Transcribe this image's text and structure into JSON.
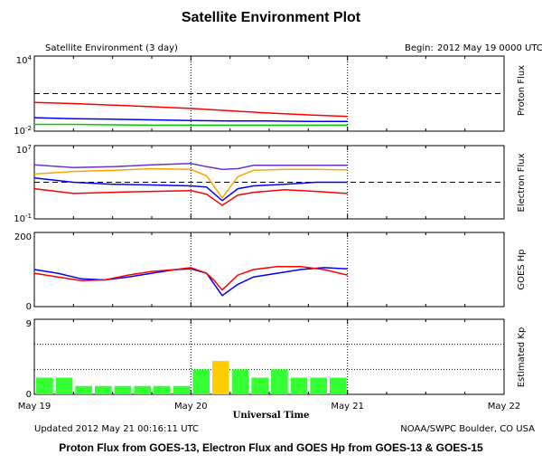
{
  "header": {
    "title": "Satellite Environment Plot",
    "subtitle_left": "Satellite Environment (3 day)",
    "begin_label": "Begin:",
    "begin_value": "2012 May 19 0000 UTC"
  },
  "footer": {
    "updated": "Updated 2012 May 21 00:16:11 UTC",
    "credit": "NOAA/SWPC Boulder, CO USA",
    "caption": "Proton Flux from GOES-13, Electron Flux and GOES Hp from GOES-13 & GOES-15"
  },
  "colors": {
    "red": "#ff0000",
    "blue": "#0000ff",
    "green": "#00cc00",
    "orange": "#ffa500",
    "purple": "#6633cc",
    "kp_green": "#33ff33",
    "kp_yellow": "#ffcc00"
  },
  "chart_data": [
    {
      "type": "line",
      "ylabel": "Proton Flux",
      "yscale": "log",
      "ylim": [
        0.01,
        10000
      ],
      "ytick_labels": [
        "10^4",
        "10^-2"
      ],
      "threshold": 10,
      "xlabel": "Universal Time",
      "x_tick_labels": [
        "May 19",
        "May 20",
        "May 21",
        "May 22"
      ],
      "xlim_days": [
        0,
        3
      ],
      "series": [
        {
          "color": "red",
          "x": [
            0,
            0.25,
            0.5,
            0.75,
            1.0,
            1.25,
            1.5,
            1.75,
            2.0
          ],
          "values": [
            2.0,
            1.6,
            1.2,
            0.9,
            0.65,
            0.42,
            0.28,
            0.2,
            0.15
          ]
        },
        {
          "color": "blue",
          "x": [
            0,
            0.25,
            0.5,
            0.75,
            1.0,
            1.25,
            1.5,
            1.75,
            2.0
          ],
          "values": [
            0.12,
            0.1,
            0.09,
            0.08,
            0.07,
            0.065,
            0.065,
            0.06,
            0.06
          ]
        },
        {
          "color": "green",
          "x": [
            0,
            0.25,
            0.5,
            0.75,
            1.0,
            1.25,
            1.5,
            1.75,
            2.0
          ],
          "values": [
            0.035,
            0.035,
            0.032,
            0.03,
            0.03,
            0.03,
            0.03,
            0.03,
            0.03
          ]
        }
      ]
    },
    {
      "type": "line",
      "ylabel": "Electron Flux",
      "yscale": "log",
      "ylim": [
        0.1,
        10000000
      ],
      "ytick_labels": [
        "10^7",
        "10^-1"
      ],
      "threshold": 1000,
      "series": [
        {
          "color": "purple",
          "x": [
            0,
            0.25,
            0.5,
            0.75,
            1.0,
            1.1,
            1.2,
            1.3,
            1.4,
            1.6,
            1.8,
            2.0
          ],
          "values": [
            80000,
            40000,
            50000,
            80000,
            110000,
            50000,
            25000,
            30000,
            70000,
            70000,
            70000,
            70000
          ]
        },
        {
          "color": "orange",
          "x": [
            0,
            0.25,
            0.5,
            0.75,
            1.0,
            1.1,
            1.2,
            1.3,
            1.4,
            1.6,
            1.8,
            2.0
          ],
          "values": [
            8000,
            15000,
            20000,
            30000,
            25000,
            5000,
            20,
            4000,
            20000,
            25000,
            25000,
            22000
          ]
        },
        {
          "color": "blue",
          "x": [
            0,
            0.25,
            0.5,
            0.75,
            1.0,
            1.1,
            1.2,
            1.3,
            1.4,
            1.6,
            1.8,
            2.0
          ],
          "values": [
            3000,
            1000,
            600,
            500,
            400,
            300,
            10,
            200,
            400,
            600,
            1000,
            1000
          ]
        },
        {
          "color": "red",
          "x": [
            0,
            0.25,
            0.5,
            0.75,
            1.0,
            1.1,
            1.2,
            1.3,
            1.4,
            1.6,
            1.8,
            2.0
          ],
          "values": [
            200,
            60,
            80,
            100,
            120,
            50,
            3,
            40,
            80,
            150,
            100,
            60
          ]
        }
      ]
    },
    {
      "type": "line",
      "ylabel": "GOES Hp",
      "ylim": [
        0,
        200
      ],
      "ytick_labels": [
        "200",
        "0"
      ],
      "series": [
        {
          "color": "blue",
          "x": [
            0,
            0.15,
            0.3,
            0.45,
            0.6,
            0.75,
            0.9,
            1.0,
            1.1,
            1.15,
            1.2,
            1.3,
            1.4,
            1.55,
            1.7,
            1.85,
            2.0
          ],
          "values": [
            100,
            90,
            75,
            72,
            80,
            90,
            100,
            102,
            90,
            60,
            30,
            60,
            80,
            90,
            100,
            105,
            102
          ]
        },
        {
          "color": "red",
          "x": [
            0,
            0.15,
            0.3,
            0.45,
            0.6,
            0.75,
            0.9,
            1.0,
            1.1,
            1.15,
            1.2,
            1.3,
            1.4,
            1.55,
            1.7,
            1.85,
            2.0
          ],
          "values": [
            90,
            80,
            70,
            72,
            85,
            95,
            100,
            105,
            90,
            70,
            45,
            85,
            100,
            108,
            108,
            100,
            85
          ]
        }
      ]
    },
    {
      "type": "bar",
      "ylabel": "Estimated Kp",
      "ylim": [
        0,
        9
      ],
      "ytick_labels": [
        "9",
        "0"
      ],
      "bar_hours": 3,
      "values": [
        2,
        2,
        1,
        1,
        1,
        1,
        1,
        1,
        3,
        4,
        3,
        2,
        3,
        2,
        2,
        2
      ],
      "bar_colors": [
        "green",
        "green",
        "green",
        "green",
        "green",
        "green",
        "green",
        "green",
        "green",
        "yellow",
        "green",
        "green",
        "green",
        "green",
        "green",
        "green"
      ]
    }
  ]
}
